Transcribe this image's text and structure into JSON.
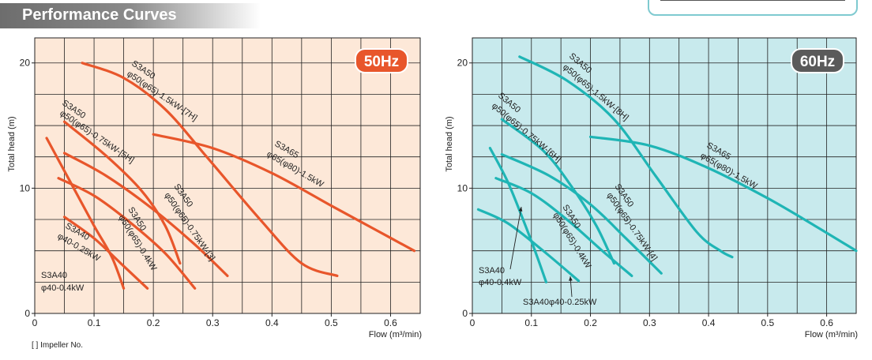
{
  "header": {
    "title": "Performance Curves"
  },
  "footnote": "[   ] Impeller No.",
  "chart_data": [
    {
      "type": "line",
      "panel": "50Hz",
      "badge": "50Hz",
      "xlabel": "Flow (m³/min)",
      "ylabel": "Total head (m)",
      "xlim": [
        0,
        0.65
      ],
      "ylim": [
        0,
        22
      ],
      "xticks": [
        "0",
        "0.1",
        "0.2",
        "0.3",
        "0.4",
        "0.5",
        "0.6"
      ],
      "yticks": [
        "0",
        "10",
        "20"
      ],
      "grid": true,
      "background": "#fde8d8",
      "color": "#e8562b",
      "series": [
        {
          "name": "S3A40 φ40-0.4kW",
          "points": [
            [
              0.02,
              14.0
            ],
            [
              0.06,
              10.5
            ],
            [
              0.1,
              7.0
            ],
            [
              0.13,
              4.5
            ],
            [
              0.15,
              2.0
            ]
          ]
        },
        {
          "name": "S3A40 φ40-0.25kW",
          "points": [
            [
              0.05,
              7.7
            ],
            [
              0.1,
              6.0
            ],
            [
              0.145,
              4.0
            ],
            [
              0.19,
              2.0
            ]
          ]
        },
        {
          "name": "S3A50 φ50(φ65)-0.4kW (3)",
          "points": [
            [
              0.04,
              10.8
            ],
            [
              0.1,
              9.4
            ],
            [
              0.16,
              7.3
            ],
            [
              0.22,
              4.8
            ],
            [
              0.27,
              2.0
            ]
          ]
        },
        {
          "name": "S3A50 φ50(φ65)-0.75kW (5)",
          "points": [
            [
              0.05,
              12.8
            ],
            [
              0.12,
              11.0
            ],
            [
              0.2,
              8.3
            ],
            [
              0.27,
              5.5
            ],
            [
              0.325,
              3.0
            ]
          ]
        },
        {
          "name": "S3A50 φ50(φ65)-0.75kW (4)",
          "points": [
            [
              0.05,
              15.3
            ],
            [
              0.12,
              12.6
            ],
            [
              0.18,
              9.8
            ],
            [
              0.22,
              7.0
            ],
            [
              0.245,
              4.0
            ]
          ]
        },
        {
          "name": "S3A50 φ50(φ65)-1.5kW (7)",
          "points": [
            [
              0.08,
              20.0
            ],
            [
              0.15,
              18.8
            ],
            [
              0.22,
              16.3
            ],
            [
              0.29,
              12.5
            ],
            [
              0.38,
              7.5
            ],
            [
              0.45,
              4.0
            ],
            [
              0.51,
              3.0
            ]
          ]
        },
        {
          "name": "S3A65 φ65(φ80)-1.5kW",
          "points": [
            [
              0.2,
              14.3
            ],
            [
              0.3,
              13.2
            ],
            [
              0.4,
              11.2
            ],
            [
              0.5,
              8.6
            ],
            [
              0.57,
              6.8
            ],
            [
              0.64,
              5.0
            ]
          ]
        }
      ],
      "labels": [
        "S3A50",
        "φ50(φ65)-1.5kW-[7H]",
        "S3A50",
        "φ50(φ65)-0.75kW-[5H]",
        "S3A65",
        "φ65(φ80)-1.5kW",
        "S3A50",
        "φ50(φ65)-0.75kW-[3]",
        "S3A50",
        "φ50(φ65)-0.4kW",
        "S3A40",
        "φ40-0.25kW",
        "S3A40",
        "φ40-0.4kW"
      ]
    },
    {
      "type": "line",
      "panel": "60Hz",
      "badge": "60Hz",
      "xlabel": "Flow (m³/min)",
      "ylabel": "Total head (m)",
      "xlim": [
        0,
        0.65
      ],
      "ylim": [
        0,
        22
      ],
      "xticks": [
        "0",
        "0.1",
        "0.2",
        "0.3",
        "0.4",
        "0.5",
        "0.6"
      ],
      "yticks": [
        "0",
        "10",
        "20"
      ],
      "grid": true,
      "background": "#c8eaed",
      "color": "#1fb5b5",
      "series": [
        {
          "name": "S3A40 φ40-0.4kW",
          "points": [
            [
              0.03,
              13.2
            ],
            [
              0.06,
              10.5
            ],
            [
              0.09,
              7.0
            ],
            [
              0.11,
              4.5
            ],
            [
              0.125,
              2.5
            ]
          ]
        },
        {
          "name": "S3A40φ40-0.25kW",
          "points": [
            [
              0.01,
              8.3
            ],
            [
              0.06,
              7.2
            ],
            [
              0.12,
              5.0
            ],
            [
              0.18,
              2.6
            ]
          ]
        },
        {
          "name": "S3A50 φ50(φ65)-0.4kW",
          "points": [
            [
              0.04,
              10.8
            ],
            [
              0.1,
              9.6
            ],
            [
              0.16,
              7.5
            ],
            [
              0.22,
              5.0
            ],
            [
              0.27,
              3.0
            ]
          ]
        },
        {
          "name": "S3A50 φ50(φ65)-0.75kW (6)",
          "points": [
            [
              0.05,
              12.7
            ],
            [
              0.13,
              11.0
            ],
            [
              0.2,
              8.7
            ],
            [
              0.26,
              6.0
            ],
            [
              0.32,
              3.2
            ]
          ]
        },
        {
          "name": "S3A50 φ50(φ65)-0.75kW (4)",
          "points": [
            [
              0.05,
              15.5
            ],
            [
              0.12,
              13.0
            ],
            [
              0.17,
              10.0
            ],
            [
              0.21,
              7.0
            ],
            [
              0.24,
              4.0
            ]
          ]
        },
        {
          "name": "S3A50 φ50(φ65)-1.5kW (8)",
          "points": [
            [
              0.08,
              20.5
            ],
            [
              0.16,
              18.6
            ],
            [
              0.24,
              15.5
            ],
            [
              0.31,
              11.0
            ],
            [
              0.38,
              6.5
            ],
            [
              0.42,
              5.0
            ],
            [
              0.44,
              4.5
            ]
          ]
        },
        {
          "name": "S3A65 φ65(φ80)-1.5kW",
          "points": [
            [
              0.2,
              14.1
            ],
            [
              0.3,
              13.4
            ],
            [
              0.4,
              11.6
            ],
            [
              0.5,
              9.2
            ],
            [
              0.58,
              7.0
            ],
            [
              0.65,
              5.0
            ]
          ]
        }
      ],
      "labels": [
        "S3A50",
        "φ50(φ65)-1.5kW-[8H]",
        "S3A50",
        "φ50(φ65)-0.75kW-[6H]",
        "S3A65",
        "φ65(φ80)-1.5kW",
        "S3A50",
        "φ50(φ65)-0.75kW-[4]",
        "S3A50",
        "φ50(φ65)-0.4kW",
        "S3A40",
        "φ40-0.4kW",
        "S3A40φ40-0.25kW"
      ]
    }
  ]
}
